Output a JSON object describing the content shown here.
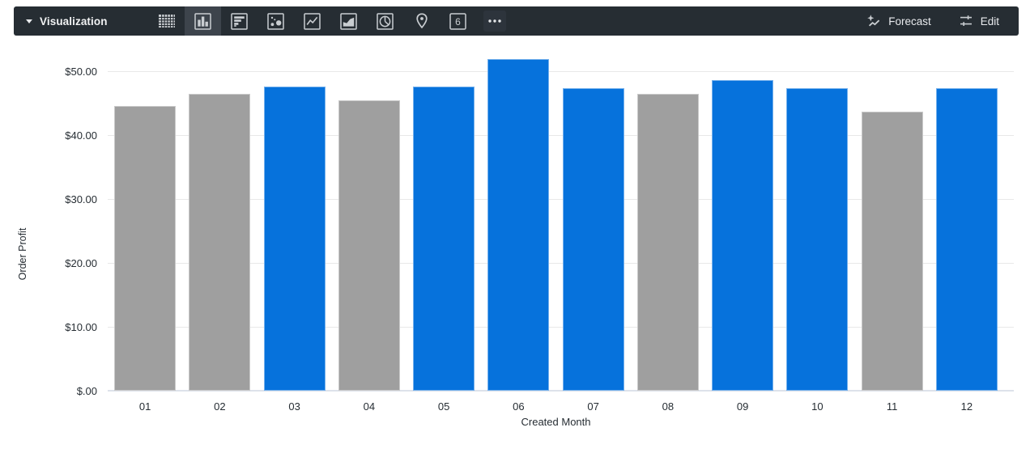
{
  "toolbar": {
    "visualization_label": "Visualization",
    "chart_types": [
      "table",
      "column",
      "bar",
      "scatter",
      "line",
      "area",
      "pie",
      "map",
      "single-value",
      "more"
    ],
    "selected_chart_type": "column",
    "single_value_glyph": "6",
    "forecast_label": "Forecast",
    "edit_label": "Edit",
    "background_color": "#262D33",
    "selected_highlight_color": "#3D444C"
  },
  "chart_data": {
    "type": "bar",
    "title": "",
    "xlabel": "Created Month",
    "ylabel": "Order Profit",
    "categories": [
      "01",
      "02",
      "03",
      "04",
      "05",
      "06",
      "07",
      "08",
      "09",
      "10",
      "11",
      "12"
    ],
    "values": [
      44.5,
      46.4,
      47.6,
      45.4,
      47.6,
      51.9,
      47.3,
      46.5,
      48.6,
      47.3,
      43.7,
      47.4
    ],
    "bar_colors": [
      "muted",
      "muted",
      "highlight",
      "muted",
      "highlight",
      "highlight",
      "highlight",
      "muted",
      "highlight",
      "highlight",
      "muted",
      "highlight"
    ],
    "palette": {
      "highlight": "#0672DC",
      "muted": "#9F9F9F"
    },
    "y_ticks": {
      "values": [
        0,
        10,
        20,
        30,
        40,
        50
      ],
      "labels": [
        "$.00",
        "$10.00",
        "$20.00",
        "$30.00",
        "$40.00",
        "$50.00"
      ]
    },
    "ylim": [
      0,
      55
    ],
    "grid": true,
    "legend": "none"
  }
}
